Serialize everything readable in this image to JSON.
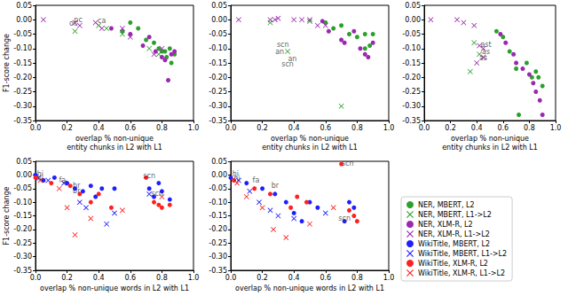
{
  "chart_data": [
    {
      "type": "scatter",
      "xlabel": "overlap % non-unique\nentity chunks in L2 with L1",
      "ylabel": "F1-score change",
      "xlim": [
        0,
        1
      ],
      "ylim": [
        -0.35,
        0.05
      ],
      "xticks": [
        {
          "value": 0,
          "label": "0.0"
        },
        0.2,
        0.4,
        0.6,
        0.8,
        {
          "value": 1,
          "label": "1.0"
        }
      ],
      "yticks": [
        0.05,
        {
          "value": 0,
          "label": "0.00"
        },
        -0.05,
        {
          "value": -0.1,
          "label": "-0.10"
        },
        -0.15,
        {
          "value": -0.2,
          "label": "-0.20"
        },
        -0.25,
        {
          "value": -0.3,
          "label": "-0.30"
        },
        -0.35
      ],
      "series": [
        {
          "name": "NER, MBERT, L2",
          "color": "#2ca02c",
          "marker": "circle",
          "x": [
            0.55,
            0.6,
            0.65,
            0.7,
            0.75,
            0.78,
            0.8,
            0.82,
            0.83,
            0.85,
            0.86,
            0.88
          ],
          "values": [
            -0.04,
            -0.01,
            -0.03,
            -0.07,
            -0.08,
            -0.1,
            -0.11,
            -0.11,
            -0.13,
            -0.1,
            -0.15,
            -0.12
          ]
        },
        {
          "name": "NER, MBERT, L1->L2",
          "color": "#2ca02c",
          "marker": "x",
          "x": [
            0.25,
            0.4,
            0.45,
            0.55,
            0.72,
            0.78
          ],
          "values": [
            -0.04,
            -0.02,
            -0.03,
            -0.05,
            -0.1,
            -0.12
          ]
        },
        {
          "name": "NER, XLM-R, L2",
          "color": "#9c27b0",
          "marker": "circle",
          "x": [
            0.48,
            0.6,
            0.68,
            0.72,
            0.76,
            0.8,
            0.82,
            0.84,
            0.86,
            0.88
          ],
          "values": [
            -0.03,
            -0.05,
            -0.09,
            -0.06,
            -0.11,
            -0.13,
            -0.14,
            -0.21,
            -0.12,
            -0.11
          ]
        },
        {
          "name": "NER, XLM-R, L1->L2",
          "color": "#9c27b0",
          "marker": "x",
          "x": [
            0.05,
            0.25,
            0.28,
            0.38,
            0.42,
            0.55,
            0.6,
            0.75,
            0.8
          ],
          "values": [
            0.0,
            -0.01,
            -0.02,
            -0.01,
            -0.03,
            -0.03,
            -0.06,
            -0.12,
            -0.1
          ]
        }
      ],
      "annotations": [
        {
          "text": "nc",
          "x": 0.27,
          "y": -0.002
        },
        {
          "text": "oc",
          "x": 0.24,
          "y": -0.014
        },
        {
          "text": "ca",
          "x": 0.42,
          "y": -0.004
        }
      ]
    },
    {
      "type": "scatter",
      "xlabel": "overlap % non-unique\nentity chunks in L2 with L1",
      "xlim": [
        0,
        1
      ],
      "ylim": [
        -0.35,
        0.05
      ],
      "xticks": [
        {
          "value": 0,
          "label": "0.0"
        },
        0.2,
        0.4,
        0.6,
        0.8,
        {
          "value": 1,
          "label": "1.0"
        }
      ],
      "yticks": [
        0.05,
        {
          "value": 0,
          "label": "0.00"
        },
        -0.05,
        {
          "value": -0.1,
          "label": "-0.10"
        },
        -0.15,
        {
          "value": -0.2,
          "label": "-0.20"
        },
        -0.25,
        {
          "value": -0.3,
          "label": "-0.30"
        },
        -0.35
      ],
      "series": [
        {
          "name": "NER, MBERT, L2",
          "color": "#2ca02c",
          "marker": "circle",
          "x": [
            0.6,
            0.65,
            0.7,
            0.75,
            0.8,
            0.85,
            0.85,
            0.9,
            0.88
          ],
          "values": [
            -0.01,
            -0.03,
            -0.02,
            -0.05,
            -0.06,
            -0.05,
            -0.1,
            -0.05,
            -0.09
          ]
        },
        {
          "name": "NER, MBERT, L1->L2",
          "color": "#2ca02c",
          "marker": "x",
          "x": [
            0.25,
            0.36,
            0.7,
            0.5
          ],
          "values": [
            -0.01,
            -0.11,
            -0.3,
            -0.005
          ]
        },
        {
          "name": "NER, XLM-R, L2",
          "color": "#9c27b0",
          "marker": "circle",
          "x": [
            0.58,
            0.62,
            0.7,
            0.72,
            0.78,
            0.82,
            0.85,
            0.87,
            0.9
          ],
          "values": [
            -0.005,
            -0.04,
            -0.07,
            -0.08,
            -0.04,
            -0.1,
            -0.12,
            -0.13,
            -0.08
          ]
        },
        {
          "name": "NER, XLM-R, L1->L2",
          "color": "#9c27b0",
          "marker": "x",
          "x": [
            0.05,
            0.25,
            0.28,
            0.3,
            0.4,
            0.45,
            0.5,
            0.55,
            0.6
          ],
          "values": [
            0.0,
            0.0,
            0.0,
            0.005,
            0.0,
            0.0,
            0.0,
            -0.02,
            -0.02
          ]
        }
      ],
      "annotations": [
        {
          "text": "scn",
          "x": 0.33,
          "y": -0.088
        },
        {
          "text": "an",
          "x": 0.31,
          "y": -0.112
        },
        {
          "text": "an",
          "x": 0.39,
          "y": -0.135
        },
        {
          "text": "scn",
          "x": 0.36,
          "y": -0.155
        }
      ]
    },
    {
      "type": "scatter",
      "xlabel": "overlap % non-unique\nentity chunks in L2 with L1",
      "xlim": [
        0,
        1
      ],
      "ylim": [
        -0.35,
        0.05
      ],
      "xticks": [
        {
          "value": 0,
          "label": "0.0"
        },
        0.2,
        0.4,
        0.6,
        0.8,
        {
          "value": 1,
          "label": "1.0"
        }
      ],
      "yticks": [
        0.05,
        {
          "value": 0,
          "label": "0.00"
        },
        -0.05,
        {
          "value": -0.1,
          "label": "-0.10"
        },
        -0.15,
        {
          "value": -0.2,
          "label": "-0.20"
        },
        -0.25,
        {
          "value": -0.3,
          "label": "-0.30"
        },
        -0.35
      ],
      "series": [
        {
          "name": "NER, MBERT, L2",
          "color": "#2ca02c",
          "marker": "circle",
          "x": [
            0.55,
            0.6,
            0.65,
            0.7,
            0.72,
            0.78,
            0.82,
            0.85,
            0.87,
            0.9
          ],
          "values": [
            -0.04,
            -0.06,
            -0.11,
            -0.17,
            -0.33,
            -0.15,
            -0.2,
            -0.18,
            -0.2,
            -0.23
          ]
        },
        {
          "name": "NER, MBERT, L1->L2",
          "color": "#2ca02c",
          "marker": "x",
          "x": [
            0.38,
            0.35,
            0.42
          ],
          "values": [
            -0.08,
            -0.18,
            -0.12
          ]
        },
        {
          "name": "NER, XLM-R, L2",
          "color": "#9c27b0",
          "marker": "circle",
          "x": [
            0.58,
            0.62,
            0.68,
            0.7,
            0.75,
            0.8,
            0.83,
            0.85,
            0.88,
            0.9
          ],
          "values": [
            -0.05,
            -0.08,
            -0.12,
            -0.15,
            -0.17,
            -0.19,
            -0.22,
            -0.25,
            -0.28,
            -0.33
          ]
        },
        {
          "name": "NER, XLM-R, L1->L2",
          "color": "#9c27b0",
          "marker": "x",
          "x": [
            0.05,
            0.25,
            0.3,
            0.38,
            0.42,
            0.45,
            0.45,
            0.4
          ],
          "values": [
            0.0,
            0.0,
            -0.01,
            -0.02,
            -0.09,
            -0.1,
            -0.13,
            -0.15
          ]
        }
      ],
      "annotations": [
        {
          "text": "ast",
          "x": 0.47,
          "y": -0.088
        },
        {
          "text": "as",
          "x": 0.47,
          "y": -0.11
        },
        {
          "text": "as",
          "x": 0.45,
          "y": -0.132
        }
      ]
    },
    {
      "type": "scatter",
      "xlabel": "overlap % non-unique words in L2 with L1",
      "ylabel": "F1-score change",
      "xlim": [
        0,
        1
      ],
      "ylim": [
        -0.35,
        0.05
      ],
      "xticks": [
        {
          "value": 0,
          "label": "0.0"
        },
        0.2,
        0.4,
        0.6,
        0.8,
        {
          "value": 1,
          "label": "1.0"
        }
      ],
      "yticks": [
        0.05,
        {
          "value": 0,
          "label": "0.00"
        },
        -0.05,
        {
          "value": -0.1,
          "label": "-0.10"
        },
        -0.15,
        {
          "value": -0.2,
          "label": "-0.20"
        },
        -0.25,
        {
          "value": -0.3,
          "label": "-0.30"
        },
        -0.35
      ],
      "series": [
        {
          "name": "WikiTitle, MBERT, L2",
          "color": "#1f1fff",
          "marker": "circle",
          "x": [
            0.0,
            0.05,
            0.12,
            0.2,
            0.25,
            0.3,
            0.35,
            0.38,
            0.42,
            0.5,
            0.72,
            0.75,
            0.78,
            0.8,
            0.85
          ],
          "values": [
            0.0,
            -0.02,
            -0.01,
            -0.03,
            -0.05,
            -0.06,
            -0.04,
            -0.08,
            -0.05,
            -0.05,
            -0.05,
            -0.08,
            -0.03,
            -0.06,
            -0.09
          ]
        },
        {
          "name": "WikiTitle, MBERT, L1->L2",
          "color": "#1f1fff",
          "marker": "x",
          "x": [
            0.02,
            0.08,
            0.18,
            0.28,
            0.32,
            0.45,
            0.5,
            0.72
          ],
          "values": [
            -0.01,
            -0.02,
            -0.03,
            -0.1,
            -0.12,
            -0.18,
            -0.14,
            -0.07
          ]
        },
        {
          "name": "WikiTitle, XLM-R, L2",
          "color": "#ff2020",
          "marker": "circle",
          "x": [
            0.0,
            0.1,
            0.22,
            0.28,
            0.35,
            0.4,
            0.48,
            0.7,
            0.75,
            0.78,
            0.8,
            0.85
          ],
          "values": [
            -0.01,
            -0.03,
            -0.04,
            -0.07,
            -0.1,
            -0.07,
            -0.12,
            -0.01,
            -0.1,
            -0.11,
            -0.12,
            -0.11
          ]
        },
        {
          "name": "WikiTitle, XLM-R, L1->L2",
          "color": "#ff2020",
          "marker": "x",
          "x": [
            0.03,
            0.15,
            0.2,
            0.25,
            0.35,
            0.55,
            0.8
          ],
          "values": [
            -0.02,
            -0.05,
            -0.12,
            -0.22,
            -0.16,
            -0.13,
            -0.08
          ]
        }
      ],
      "annotations": [
        {
          "text": "hi",
          "x": 0.03,
          "y": 0.002
        },
        {
          "text": "hi",
          "x": 0.03,
          "y": -0.012
        },
        {
          "text": "fa",
          "x": 0.17,
          "y": -0.02
        },
        {
          "text": "br",
          "x": 0.26,
          "y": -0.038
        },
        {
          "text": "br",
          "x": 0.26,
          "y": -0.058
        },
        {
          "text": "scn",
          "x": 0.72,
          "y": -0.003
        },
        {
          "text": "scn",
          "x": 0.77,
          "y": -0.07
        }
      ]
    },
    {
      "type": "scatter",
      "xlabel": "overlap % non-unique words in L2 with L1",
      "xlim": [
        0,
        1
      ],
      "ylim": [
        -0.35,
        0.05
      ],
      "xticks": [
        {
          "value": 0,
          "label": "0.0"
        },
        0.2,
        0.4,
        0.6,
        0.8,
        {
          "value": 1,
          "label": "1.0"
        }
      ],
      "yticks": [
        0.05,
        {
          "value": 0,
          "label": "0.00"
        },
        -0.05,
        {
          "value": -0.1,
          "label": "-0.10"
        },
        -0.15,
        {
          "value": -0.2,
          "label": "-0.20"
        },
        -0.25,
        {
          "value": -0.3,
          "label": "-0.30"
        },
        -0.35
      ],
      "legend": "right",
      "series": [
        {
          "name": "WikiTitle, MBERT, L2",
          "color": "#1f1fff",
          "marker": "circle",
          "x": [
            0.0,
            0.1,
            0.2,
            0.28,
            0.35,
            0.4,
            0.45,
            0.5,
            0.55,
            0.72,
            0.75,
            0.78
          ],
          "values": [
            -0.01,
            -0.03,
            -0.05,
            -0.07,
            -0.1,
            -0.14,
            -0.17,
            -0.1,
            -0.12,
            -0.17,
            -0.1,
            -0.12
          ]
        },
        {
          "name": "WikiTitle, MBERT, L1->L2",
          "color": "#1f1fff",
          "marker": "x",
          "x": [
            0.05,
            0.12,
            0.18,
            0.25,
            0.3,
            0.4,
            0.6
          ],
          "values": [
            -0.02,
            -0.06,
            -0.1,
            -0.13,
            -0.15,
            -0.16,
            -0.14
          ]
        },
        {
          "name": "WikiTitle, XLM-R, L2",
          "color": "#ff2020",
          "marker": "circle",
          "x": [
            0.02,
            0.15,
            0.25,
            0.38,
            0.42,
            0.48,
            0.7,
            0.75,
            0.78,
            0.8
          ],
          "values": [
            -0.02,
            -0.05,
            -0.07,
            -0.12,
            -0.08,
            -0.1,
            0.04,
            -0.13,
            -0.15,
            -0.17
          ]
        },
        {
          "name": "WikiTitle, XLM-R, L1->L2",
          "color": "#ff2020",
          "marker": "x",
          "x": [
            0.04,
            0.1,
            0.2,
            0.27,
            0.35,
            0.5,
            0.65
          ],
          "values": [
            -0.03,
            -0.08,
            -0.12,
            -0.2,
            -0.23,
            -0.18,
            -0.12
          ]
        }
      ],
      "annotations": [
        {
          "text": "hi",
          "x": 0.03,
          "y": 0.003
        },
        {
          "text": "hi",
          "x": 0.04,
          "y": -0.013
        },
        {
          "text": "fa",
          "x": 0.16,
          "y": -0.02
        },
        {
          "text": "br",
          "x": 0.28,
          "y": -0.04
        },
        {
          "text": "scn",
          "x": 0.74,
          "y": 0.042
        },
        {
          "text": "scn",
          "x": 0.72,
          "y": -0.16
        }
      ]
    }
  ]
}
